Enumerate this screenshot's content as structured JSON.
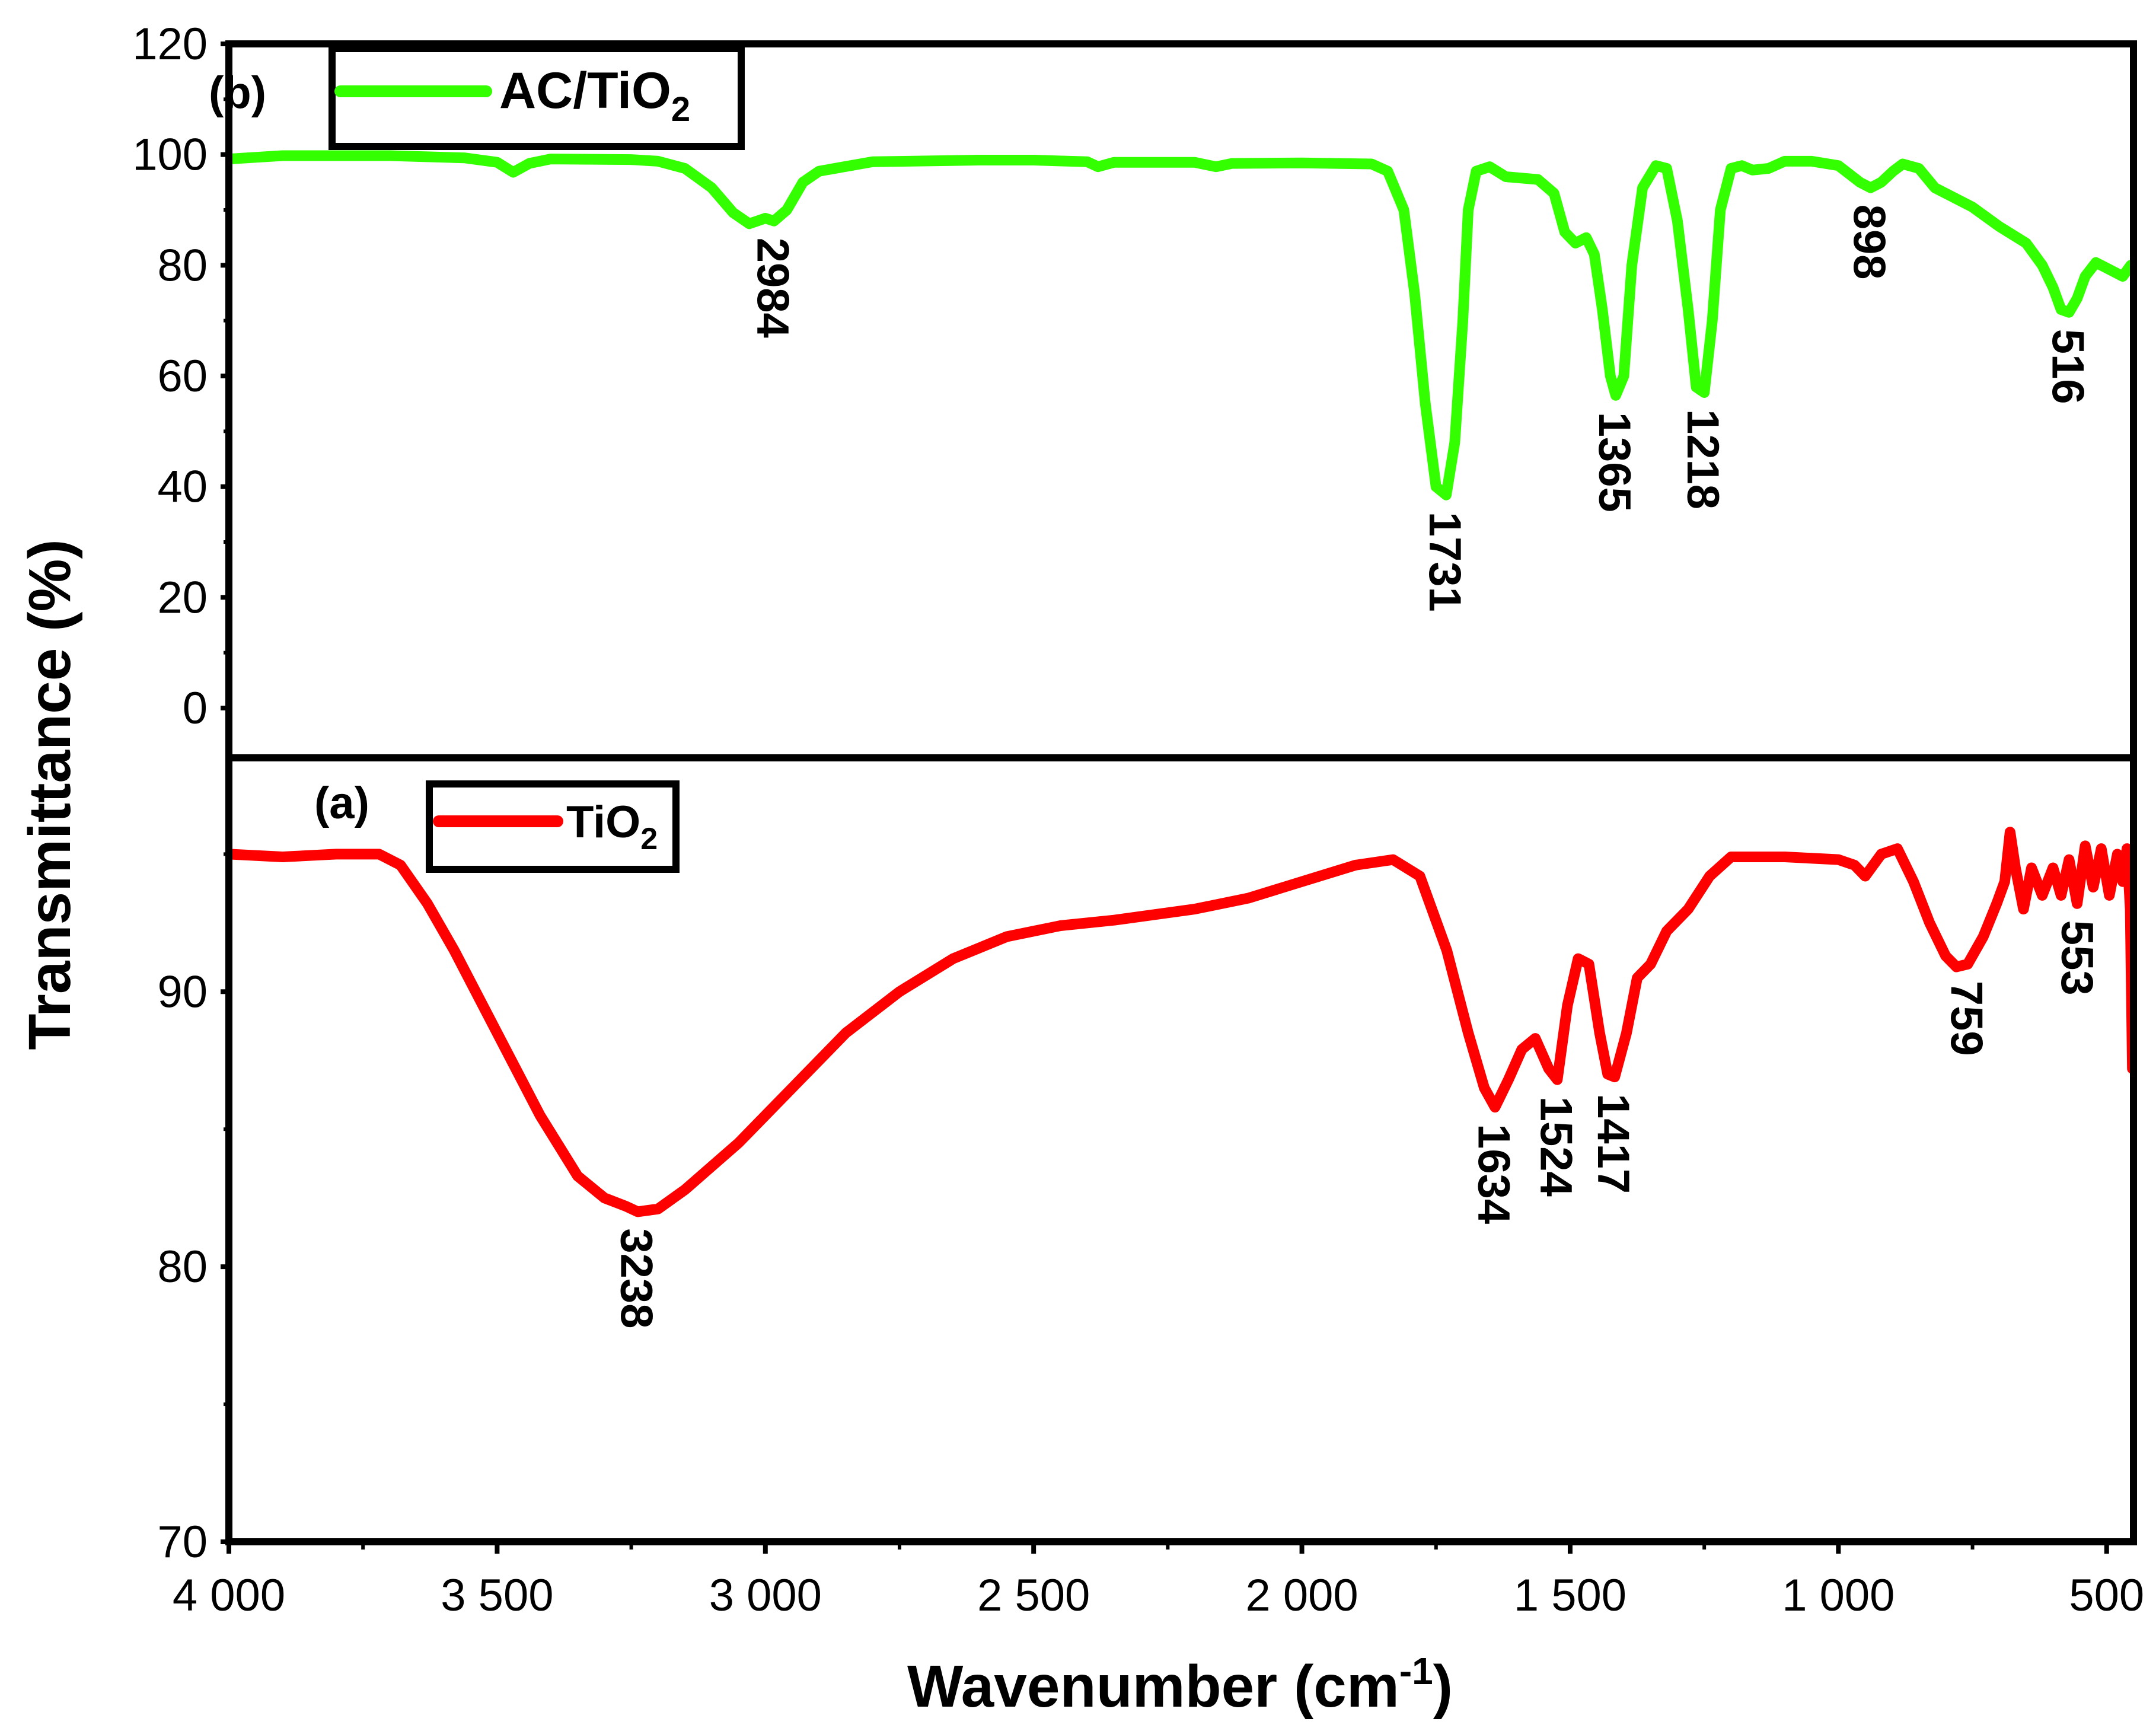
{
  "chart_data": [
    {
      "panel": "(b)",
      "type": "line",
      "title": "",
      "xlabel": "Wavenumber (cm",
      "xlabel_sup": "-1",
      "xlabel_end": ")",
      "ylabel": "Transmittance (%)",
      "xlim": [
        4000,
        450
      ],
      "ylim": [
        -9,
        120
      ],
      "xticks": [
        4000,
        3500,
        3000,
        2500,
        2000,
        1500,
        1000,
        500
      ],
      "xtick_labels": [
        "4 000",
        "3 500",
        "3 000",
        "2 500",
        "2 000",
        "1 500",
        "1 000",
        "500"
      ],
      "yticks": [
        0,
        20,
        40,
        60,
        80,
        100,
        120
      ],
      "ytick_labels": [
        "0",
        "20",
        "40",
        "60",
        "80",
        "100",
        "120"
      ],
      "legend": {
        "label": "AC/TiO",
        "sub": "2",
        "placement": "top-left"
      },
      "series": [
        {
          "name": "AC/TiO2",
          "color": "#33ff00",
          "points": [
            [
              4000,
              99.2
            ],
            [
              3900,
              99.8
            ],
            [
              3700,
              99.8
            ],
            [
              3560,
              99.4
            ],
            [
              3500,
              98.6
            ],
            [
              3470,
              96.8
            ],
            [
              3440,
              98.4
            ],
            [
              3400,
              99.2
            ],
            [
              3250,
              99.1
            ],
            [
              3200,
              98.8
            ],
            [
              3150,
              97.5
            ],
            [
              3100,
              94
            ],
            [
              3060,
              89.5
            ],
            [
              3030,
              87.5
            ],
            [
              3000,
              88.5
            ],
            [
              2984,
              88
            ],
            [
              2960,
              90
            ],
            [
              2930,
              95
            ],
            [
              2900,
              97
            ],
            [
              2800,
              98.7
            ],
            [
              2600,
              99
            ],
            [
              2500,
              99
            ],
            [
              2400,
              98.7
            ],
            [
              2380,
              97.8
            ],
            [
              2350,
              98.6
            ],
            [
              2200,
              98.6
            ],
            [
              2160,
              97.8
            ],
            [
              2130,
              98.4
            ],
            [
              2000,
              98.5
            ],
            [
              1870,
              98.3
            ],
            [
              1840,
              97
            ],
            [
              1810,
              90
            ],
            [
              1790,
              75
            ],
            [
              1770,
              55
            ],
            [
              1750,
              40
            ],
            [
              1731,
              38.5
            ],
            [
              1715,
              48
            ],
            [
              1700,
              70
            ],
            [
              1690,
              90
            ],
            [
              1675,
              97
            ],
            [
              1650,
              97.8
            ],
            [
              1620,
              96
            ],
            [
              1560,
              95.5
            ],
            [
              1530,
              93
            ],
            [
              1510,
              86
            ],
            [
              1490,
              84
            ],
            [
              1470,
              85
            ],
            [
              1455,
              82
            ],
            [
              1440,
              72
            ],
            [
              1425,
              60
            ],
            [
              1415,
              56.5
            ],
            [
              1400,
              60
            ],
            [
              1385,
              80
            ],
            [
              1365,
              94
            ],
            [
              1340,
              98
            ],
            [
              1320,
              97.5
            ],
            [
              1300,
              88
            ],
            [
              1280,
              72
            ],
            [
              1265,
              58
            ],
            [
              1250,
              57
            ],
            [
              1235,
              70
            ],
            [
              1220,
              90
            ],
            [
              1200,
              97.5
            ],
            [
              1180,
              98
            ],
            [
              1160,
              97.2
            ],
            [
              1130,
              97.5
            ],
            [
              1100,
              98.8
            ],
            [
              1050,
              98.8
            ],
            [
              1000,
              98
            ],
            [
              960,
              95
            ],
            [
              940,
              94
            ],
            [
              920,
              95
            ],
            [
              898,
              97
            ],
            [
              880,
              98.3
            ],
            [
              850,
              97.5
            ],
            [
              820,
              94
            ],
            [
              750,
              90.5
            ],
            [
              700,
              87
            ],
            [
              650,
              84
            ],
            [
              620,
              80
            ],
            [
              600,
              76
            ],
            [
              585,
              72
            ],
            [
              570,
              71.5
            ],
            [
              555,
              74
            ],
            [
              540,
              78
            ],
            [
              520,
              80.5
            ],
            [
              500,
              79.5
            ],
            [
              470,
              78
            ],
            [
              455,
              80
            ]
          ]
        }
      ],
      "annotations": [
        {
          "text": "2984",
          "x": 2984,
          "y": 88
        },
        {
          "text": "1731",
          "x": 1731,
          "y": 38.5
        },
        {
          "text": "1365",
          "x": 1415,
          "y": 56.5
        },
        {
          "text": "1218",
          "x": 1250,
          "y": 57
        },
        {
          "text": "898",
          "x": 940,
          "y": 94
        },
        {
          "text": "516",
          "x": 570,
          "y": 71.5
        }
      ]
    },
    {
      "panel": "(a)",
      "type": "line",
      "title": "",
      "xlim": [
        4000,
        450
      ],
      "ylim": [
        70,
        98.5
      ],
      "yticks": [
        70,
        80,
        90
      ],
      "ytick_labels": [
        "70",
        "80",
        "90"
      ],
      "legend": {
        "label": "TiO",
        "sub": "2",
        "placement": "top-left"
      },
      "series": [
        {
          "name": "TiO2",
          "color": "#ff0000",
          "points": [
            [
              4000,
              95.0
            ],
            [
              3900,
              94.9
            ],
            [
              3800,
              95.0
            ],
            [
              3720,
              95.0
            ],
            [
              3680,
              94.6
            ],
            [
              3630,
              93.2
            ],
            [
              3580,
              91.5
            ],
            [
              3500,
              88.5
            ],
            [
              3420,
              85.5
            ],
            [
              3350,
              83.3
            ],
            [
              3300,
              82.5
            ],
            [
              3260,
              82.2
            ],
            [
              3238,
              82.0
            ],
            [
              3200,
              82.1
            ],
            [
              3150,
              82.8
            ],
            [
              3050,
              84.5
            ],
            [
              2950,
              86.5
            ],
            [
              2850,
              88.5
            ],
            [
              2750,
              90.0
            ],
            [
              2650,
              91.2
            ],
            [
              2550,
              92.0
            ],
            [
              2450,
              92.4
            ],
            [
              2350,
              92.6
            ],
            [
              2200,
              93.0
            ],
            [
              2100,
              93.4
            ],
            [
              2000,
              94.0
            ],
            [
              1900,
              94.6
            ],
            [
              1830,
              94.8
            ],
            [
              1780,
              94.2
            ],
            [
              1730,
              91.5
            ],
            [
              1690,
              88.5
            ],
            [
              1660,
              86.5
            ],
            [
              1640,
              85.8
            ],
            [
              1615,
              86.8
            ],
            [
              1590,
              87.9
            ],
            [
              1565,
              88.3
            ],
            [
              1540,
              87.2
            ],
            [
              1524,
              86.8
            ],
            [
              1505,
              89.5
            ],
            [
              1485,
              91.2
            ],
            [
              1465,
              91.0
            ],
            [
              1445,
              88.5
            ],
            [
              1430,
              87.0
            ],
            [
              1417,
              86.9
            ],
            [
              1395,
              88.5
            ],
            [
              1375,
              90.5
            ],
            [
              1350,
              91.0
            ],
            [
              1320,
              92.2
            ],
            [
              1280,
              93.0
            ],
            [
              1240,
              94.2
            ],
            [
              1200,
              94.9
            ],
            [
              1100,
              94.9
            ],
            [
              1000,
              94.8
            ],
            [
              970,
              94.6
            ],
            [
              950,
              94.2
            ],
            [
              920,
              95.0
            ],
            [
              890,
              95.2
            ],
            [
              860,
              94.0
            ],
            [
              830,
              92.5
            ],
            [
              800,
              91.3
            ],
            [
              780,
              90.9
            ],
            [
              759,
              91.0
            ],
            [
              730,
              92.0
            ],
            [
              705,
              93.2
            ],
            [
              690,
              94.0
            ],
            [
              680,
              95.8
            ],
            [
              670,
              94.5
            ],
            [
              655,
              93.0
            ],
            [
              640,
              94.5
            ],
            [
              620,
              93.5
            ],
            [
              600,
              94.5
            ],
            [
              585,
              93.5
            ],
            [
              570,
              94.8
            ],
            [
              555,
              93.2
            ],
            [
              540,
              95.3
            ],
            [
              525,
              93.8
            ],
            [
              510,
              95.2
            ],
            [
              495,
              93.5
            ],
            [
              480,
              95.0
            ],
            [
              470,
              94.0
            ],
            [
              462,
              95.2
            ],
            [
              456,
              93.0
            ],
            [
              452,
              87.2
            ]
          ]
        }
      ],
      "annotations": [
        {
          "text": "3238",
          "x": 3238,
          "y": 82.0
        },
        {
          "text": "1634",
          "x": 1640,
          "y": 85.8
        },
        {
          "text": "1524",
          "x": 1524,
          "y": 86.8
        },
        {
          "text": "1417",
          "x": 1417,
          "y": 86.9
        },
        {
          "text": "759",
          "x": 759,
          "y": 91.0
        },
        {
          "text": "553",
          "x": 553,
          "y": 93.2
        }
      ]
    }
  ]
}
